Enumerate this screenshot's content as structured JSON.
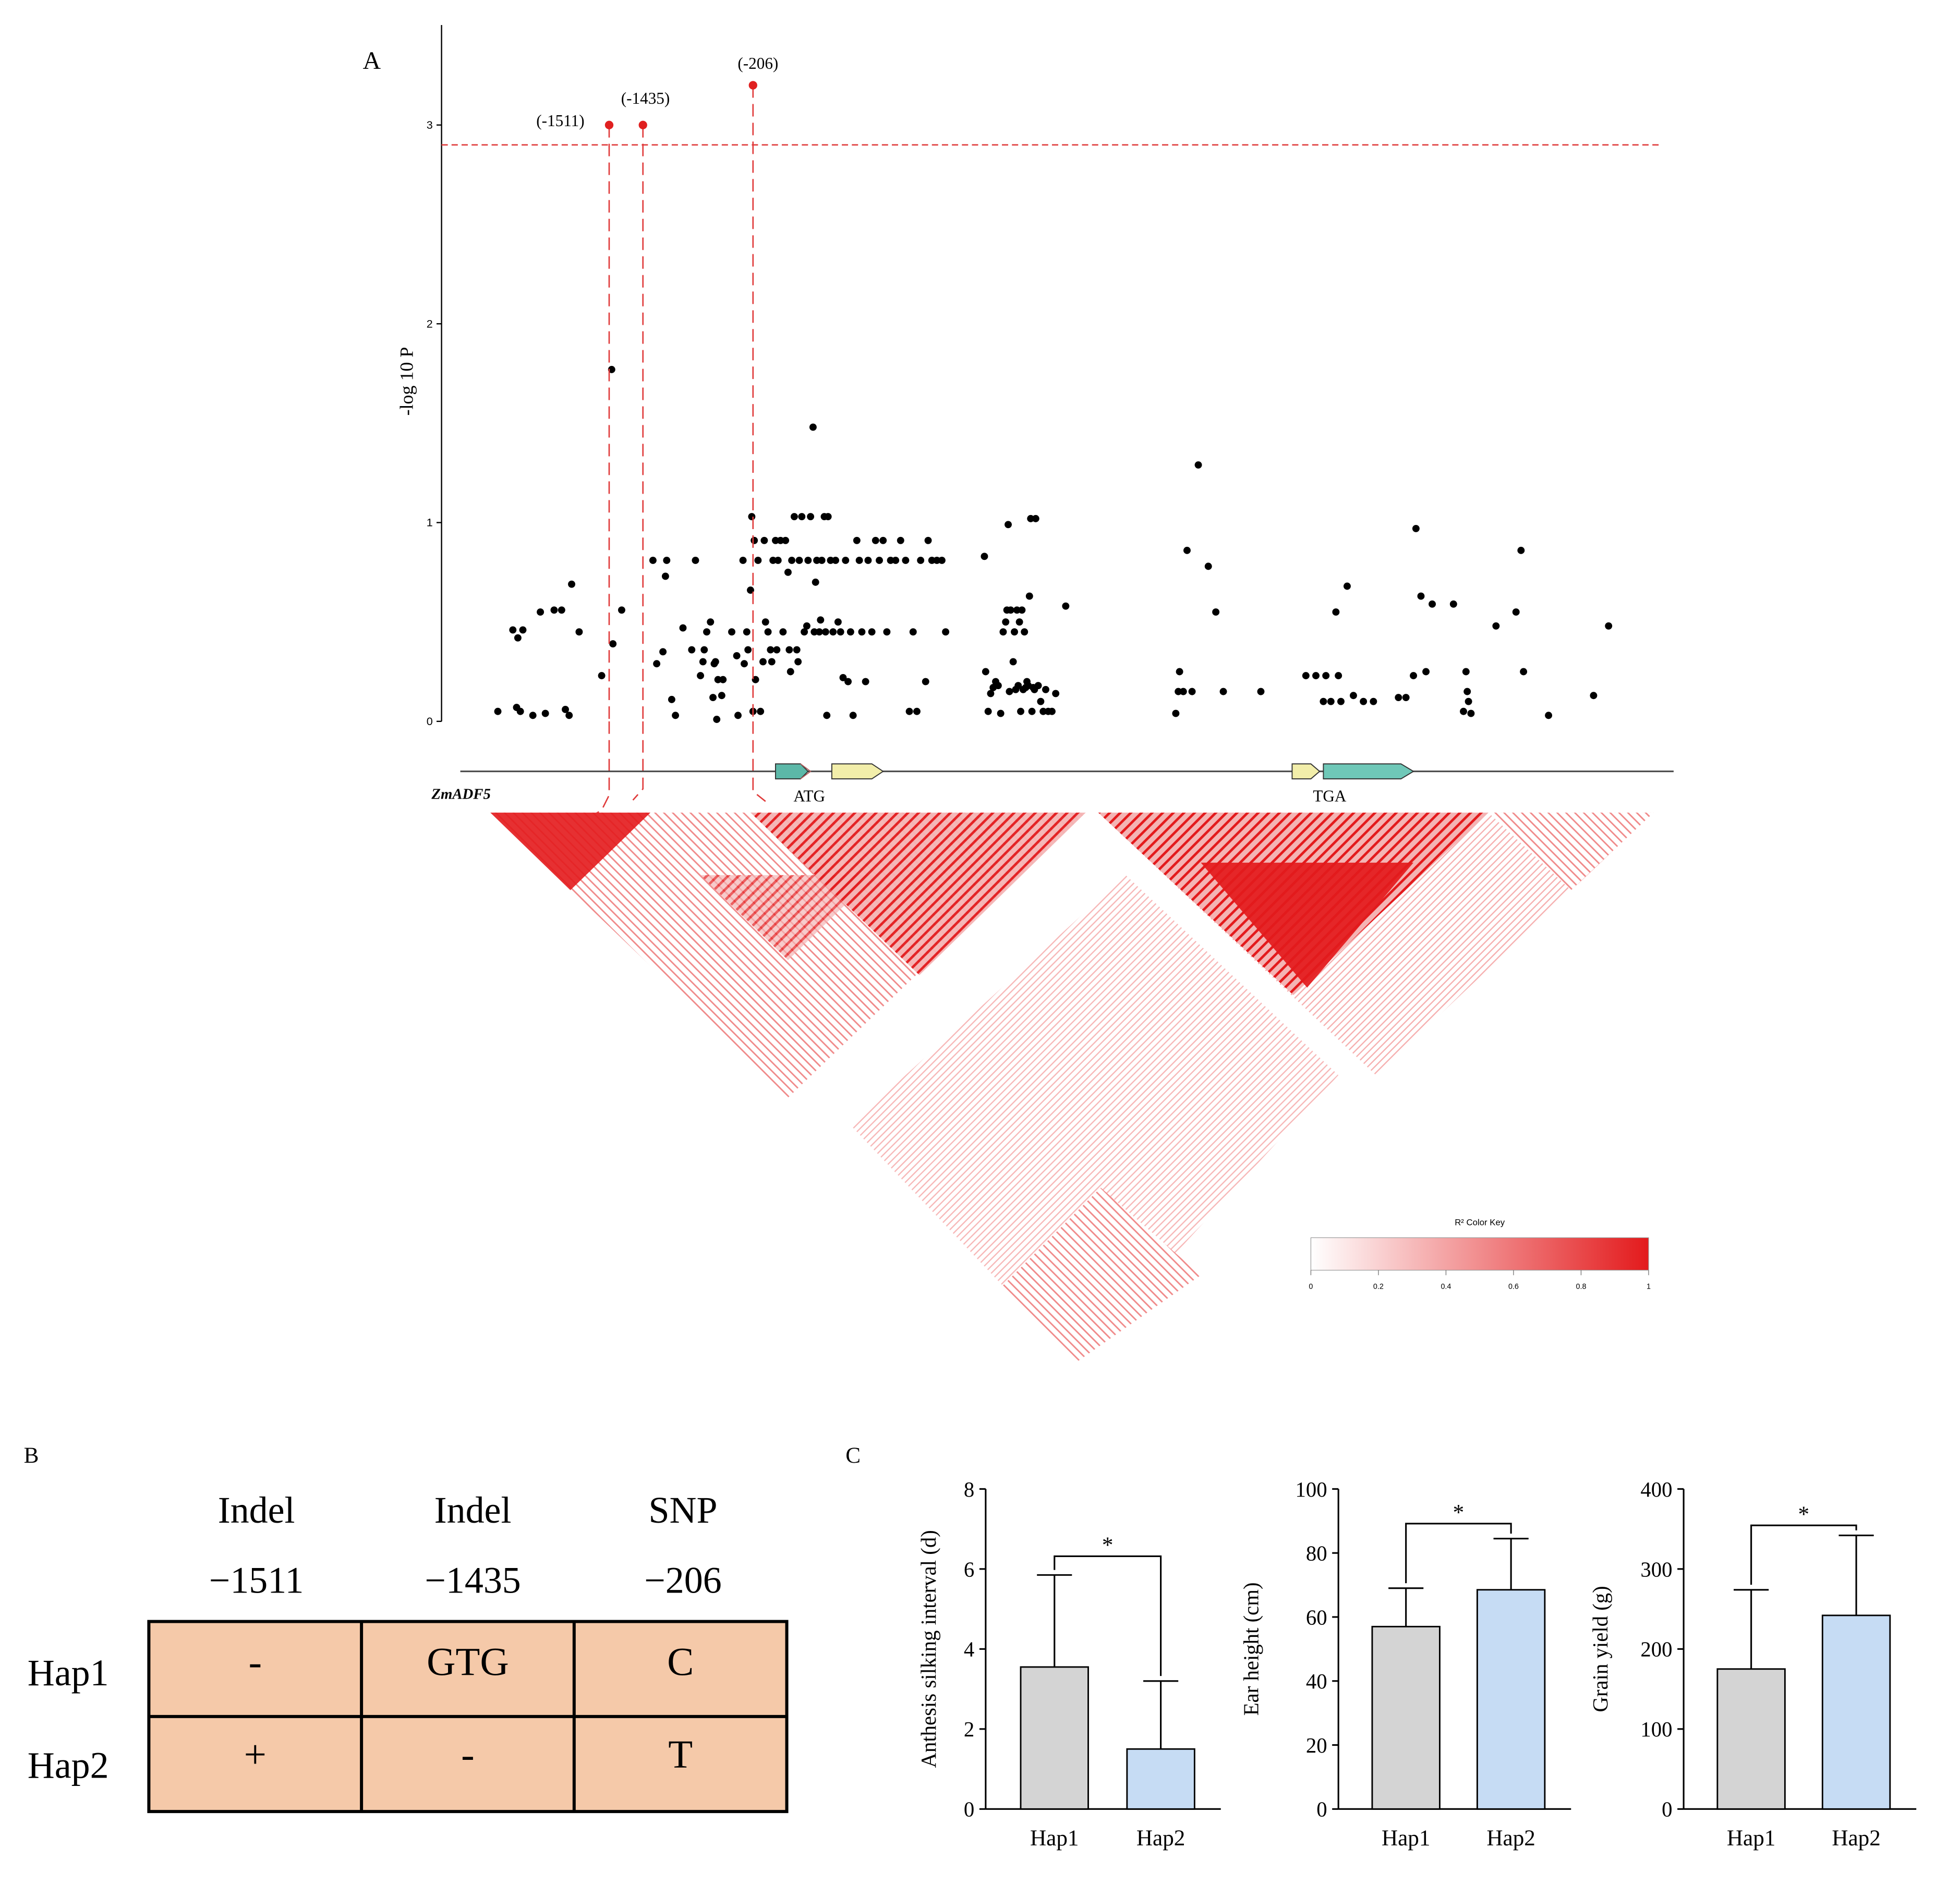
{
  "panels": {
    "a": "A",
    "b": "B",
    "c": "C"
  },
  "colors": {
    "significant": "#e02020",
    "snp_point": "#000000",
    "threshold": "#e03a3a",
    "ld_red": "#e31a1c",
    "hap1_bar": "#d4d4d4",
    "hap2_bar": "#c6dcf4",
    "table_fill": "#f5c9a9"
  },
  "chart_data": [
    {
      "type": "scatter",
      "ylabel": "-log 10 P",
      "ylim": [
        0,
        3.5
      ],
      "yticks": [
        "0",
        "1",
        "2",
        "3"
      ],
      "threshold": 2.9,
      "gene_label": "ZmADF5",
      "gene_markers": [
        "ATG",
        "TGA"
      ],
      "significant": [
        {
          "label": "(-1511)",
          "x": 487,
          "y": 3.0
        },
        {
          "label": "(-1435)",
          "x": 514,
          "y": 3.0
        },
        {
          "label": "(-206)",
          "x": 602,
          "y": 3.2
        }
      ],
      "points": [
        [
          398,
          0.05
        ],
        [
          410,
          0.46
        ],
        [
          414,
          0.42
        ],
        [
          418,
          0.46
        ],
        [
          413,
          0.07
        ],
        [
          416,
          0.05
        ],
        [
          426,
          0.03
        ],
        [
          432,
          0.55
        ],
        [
          436,
          0.04
        ],
        [
          443,
          0.56
        ],
        [
          449,
          0.56
        ],
        [
          452,
          0.06
        ],
        [
          455,
          0.03
        ],
        [
          457,
          0.69
        ],
        [
          463,
          0.45
        ],
        [
          481,
          0.23
        ],
        [
          489,
          1.77
        ],
        [
          490,
          0.39
        ],
        [
          497,
          0.56
        ],
        [
          522,
          0.81
        ],
        [
          525,
          0.29
        ],
        [
          532,
          0.73
        ],
        [
          533,
          0.81
        ],
        [
          530,
          0.35
        ],
        [
          537,
          0.11
        ],
        [
          540,
          0.03
        ],
        [
          546,
          0.47
        ],
        [
          553,
          0.36
        ],
        [
          556,
          0.81
        ],
        [
          560,
          0.23
        ],
        [
          562,
          0.3
        ],
        [
          563,
          0.36
        ],
        [
          565,
          0.45
        ],
        [
          568,
          0.5
        ],
        [
          571,
          0.29
        ],
        [
          572,
          0.3
        ],
        [
          574,
          0.21
        ],
        [
          570,
          0.12
        ],
        [
          573,
          0.01
        ],
        [
          577,
          0.13
        ],
        [
          578,
          0.21
        ],
        [
          585,
          0.45
        ],
        [
          589,
          0.33
        ],
        [
          590,
          0.03
        ],
        [
          594,
          0.81
        ],
        [
          595,
          0.29
        ],
        [
          597,
          0.45
        ],
        [
          598,
          0.36
        ],
        [
          600,
          0.66
        ],
        [
          601,
          1.03
        ],
        [
          603,
          0.91
        ],
        [
          602,
          0.05
        ],
        [
          604,
          0.21
        ],
        [
          606,
          0.81
        ],
        [
          608,
          0.05
        ],
        [
          610,
          0.3
        ],
        [
          611,
          0.91
        ],
        [
          612,
          0.5
        ],
        [
          614,
          0.45
        ],
        [
          616,
          0.36
        ],
        [
          617,
          0.3
        ],
        [
          618,
          0.81
        ],
        [
          620,
          0.91
        ],
        [
          621,
          0.36
        ],
        [
          622,
          0.81
        ],
        [
          624,
          0.91
        ],
        [
          626,
          0.45
        ],
        [
          628,
          0.91
        ],
        [
          630,
          0.75
        ],
        [
          631,
          0.36
        ],
        [
          632,
          0.25
        ],
        [
          633,
          0.81
        ],
        [
          635,
          1.03
        ],
        [
          637,
          0.36
        ],
        [
          638,
          0.3
        ],
        [
          639,
          0.81
        ],
        [
          641,
          1.03
        ],
        [
          643,
          0.45
        ],
        [
          645,
          0.48
        ],
        [
          646,
          0.81
        ],
        [
          648,
          1.03
        ],
        [
          650,
          1.48
        ],
        [
          651,
          0.45
        ],
        [
          652,
          0.7
        ],
        [
          653,
          0.81
        ],
        [
          655,
          0.45
        ],
        [
          656,
          0.51
        ],
        [
          657,
          0.81
        ],
        [
          659,
          1.03
        ],
        [
          660,
          0.45
        ],
        [
          661,
          0.03
        ],
        [
          662,
          1.03
        ],
        [
          664,
          0.81
        ],
        [
          666,
          0.45
        ],
        [
          668,
          0.81
        ],
        [
          670,
          0.5
        ],
        [
          672,
          0.45
        ],
        [
          674,
          0.22
        ],
        [
          676,
          0.81
        ],
        [
          678,
          0.2
        ],
        [
          680,
          0.45
        ],
        [
          682,
          0.03
        ],
        [
          685,
          0.91
        ],
        [
          687,
          0.81
        ],
        [
          689,
          0.45
        ],
        [
          692,
          0.2
        ],
        [
          694,
          0.81
        ],
        [
          697,
          0.45
        ],
        [
          700,
          0.91
        ],
        [
          703,
          0.81
        ],
        [
          706,
          0.91
        ],
        [
          709,
          0.45
        ],
        [
          712,
          0.81
        ],
        [
          716,
          0.81
        ],
        [
          720,
          0.91
        ],
        [
          724,
          0.81
        ],
        [
          727,
          0.05
        ],
        [
          730,
          0.45
        ],
        [
          733,
          0.05
        ],
        [
          736,
          0.81
        ],
        [
          740,
          0.2
        ],
        [
          742,
          0.91
        ],
        [
          745,
          0.81
        ],
        [
          749,
          0.81
        ],
        [
          753,
          0.81
        ],
        [
          756,
          0.45
        ],
        [
          787,
          0.83
        ],
        [
          788,
          0.25
        ],
        [
          790,
          0.05
        ],
        [
          792,
          0.14
        ],
        [
          794,
          0.17
        ],
        [
          796,
          0.2
        ],
        [
          798,
          0.18
        ],
        [
          800,
          0.04
        ],
        [
          802,
          0.45
        ],
        [
          804,
          0.5
        ],
        [
          805,
          0.56
        ],
        [
          806,
          0.99
        ],
        [
          807,
          0.15
        ],
        [
          808,
          0.56
        ],
        [
          810,
          0.3
        ],
        [
          811,
          0.45
        ],
        [
          812,
          0.16
        ],
        [
          813,
          0.56
        ],
        [
          814,
          0.18
        ],
        [
          815,
          0.5
        ],
        [
          816,
          0.05
        ],
        [
          817,
          0.56
        ],
        [
          818,
          0.16
        ],
        [
          819,
          0.45
        ],
        [
          820,
          0.17
        ],
        [
          821,
          0.2
        ],
        [
          822,
          0.18
        ],
        [
          823,
          0.63
        ],
        [
          824,
          1.02
        ],
        [
          825,
          0.05
        ],
        [
          826,
          0.17
        ],
        [
          827,
          0.16
        ],
        [
          828,
          1.02
        ],
        [
          830,
          0.18
        ],
        [
          832,
          0.1
        ],
        [
          834,
          0.05
        ],
        [
          836,
          0.16
        ],
        [
          838,
          0.05
        ],
        [
          841,
          0.05
        ],
        [
          844,
          0.14
        ],
        [
          852,
          0.58
        ],
        [
          940,
          0.04
        ],
        [
          942,
          0.15
        ],
        [
          943,
          0.25
        ],
        [
          946,
          0.15
        ],
        [
          949,
          0.86
        ],
        [
          953,
          0.15
        ],
        [
          958,
          1.29
        ],
        [
          966,
          0.78
        ],
        [
          972,
          0.55
        ],
        [
          978,
          0.15
        ],
        [
          1008,
          0.15
        ],
        [
          1044,
          0.23
        ],
        [
          1052,
          0.23
        ],
        [
          1058,
          0.1
        ],
        [
          1060,
          0.23
        ],
        [
          1064,
          0.1
        ],
        [
          1068,
          0.55
        ],
        [
          1070,
          0.23
        ],
        [
          1072,
          0.1
        ],
        [
          1077,
          0.68
        ],
        [
          1082,
          0.13
        ],
        [
          1090,
          0.1
        ],
        [
          1098,
          0.1
        ],
        [
          1118,
          0.12
        ],
        [
          1124,
          0.12
        ],
        [
          1130,
          0.23
        ],
        [
          1132,
          0.97
        ],
        [
          1136,
          0.63
        ],
        [
          1140,
          0.25
        ],
        [
          1145,
          0.59
        ],
        [
          1162,
          0.59
        ],
        [
          1170,
          0.05
        ],
        [
          1172,
          0.25
        ],
        [
          1173,
          0.15
        ],
        [
          1174,
          0.1
        ],
        [
          1176,
          0.04
        ],
        [
          1196,
          0.48
        ],
        [
          1212,
          0.55
        ],
        [
          1216,
          0.86
        ],
        [
          1218,
          0.25
        ],
        [
          1238,
          0.03
        ],
        [
          1274,
          0.13
        ],
        [
          1286,
          0.48
        ]
      ]
    },
    {
      "type": "heatmap",
      "title": "R² Color Key",
      "ticks": [
        "0",
        "0.2",
        "0.4",
        "0.6",
        "0.8",
        "1"
      ]
    },
    {
      "type": "table",
      "columns": [
        {
          "type": "Indel",
          "pos": "−1511"
        },
        {
          "type": "Indel",
          "pos": "−1435"
        },
        {
          "type": "SNP",
          "pos": "−206"
        }
      ],
      "rows": [
        {
          "name": "Hap1",
          "cells": [
            "-",
            "GTG",
            "C"
          ]
        },
        {
          "name": "Hap2",
          "cells": [
            "+",
            "-",
            "T"
          ]
        }
      ]
    },
    {
      "type": "bar",
      "ylabel": "Anthesis silking interval (d)",
      "categories": [
        "Hap1",
        "Hap2"
      ],
      "values": [
        3.55,
        1.5
      ],
      "errors": [
        2.3,
        1.7
      ],
      "ylim": [
        0,
        8
      ],
      "yticks": [
        "0",
        "2",
        "4",
        "6",
        "8"
      ],
      "sig": "*"
    },
    {
      "type": "bar",
      "ylabel": "Ear height (cm)",
      "categories": [
        "Hap1",
        "Hap2"
      ],
      "values": [
        57,
        68.5
      ],
      "errors": [
        12,
        16
      ],
      "ylim": [
        0,
        100
      ],
      "yticks": [
        "0",
        "20",
        "40",
        "60",
        "80",
        "100"
      ],
      "sig": "*"
    },
    {
      "type": "bar",
      "ylabel": "Grain yield (g)",
      "categories": [
        "Hap1",
        "Hap2"
      ],
      "values": [
        175,
        242
      ],
      "errors": [
        99,
        100
      ],
      "ylim": [
        0,
        400
      ],
      "yticks": [
        "0",
        "100",
        "200",
        "300",
        "400"
      ],
      "sig": "*"
    }
  ]
}
